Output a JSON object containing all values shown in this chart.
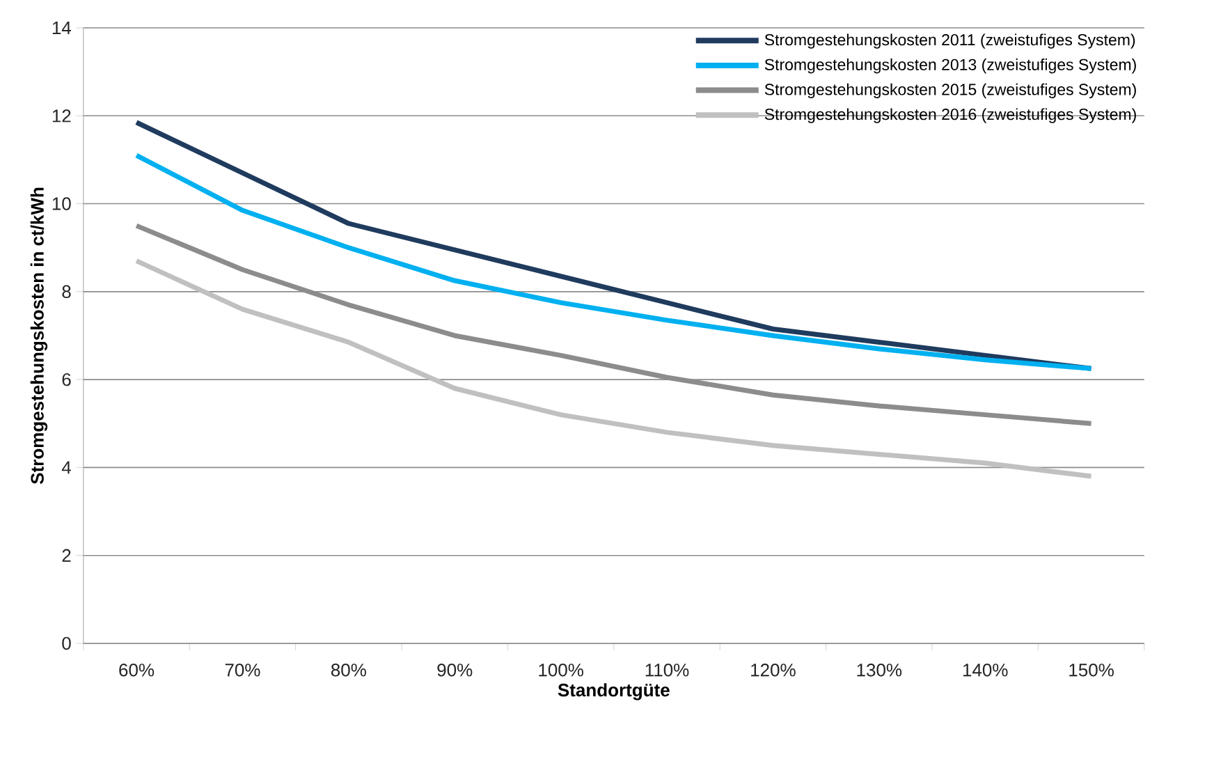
{
  "chart_data": {
    "type": "line",
    "xlabel": "Standortgüte",
    "ylabel": "Stromgestehungskosten in ct/kWh",
    "categories": [
      "60%",
      "70%",
      "80%",
      "90%",
      "100%",
      "110%",
      "120%",
      "130%",
      "140%",
      "150%"
    ],
    "series": [
      {
        "name": "Stromgestehungskosten 2011 (zweistufiges System)",
        "color": "#1f3b5e",
        "values": [
          11.85,
          10.7,
          9.55,
          8.95,
          8.35,
          7.75,
          7.15,
          6.85,
          6.55,
          6.25
        ]
      },
      {
        "name": "Stromgestehungskosten 2013 (zweistufiges System)",
        "color": "#00b0f0",
        "values": [
          11.1,
          9.85,
          9.0,
          8.25,
          7.75,
          7.35,
          7.0,
          6.7,
          6.45,
          6.25
        ]
      },
      {
        "name": "Stromgestehungskosten 2015 (zweistufiges System)",
        "color": "#8c8c8c",
        "values": [
          9.5,
          8.5,
          7.7,
          7.0,
          6.55,
          6.05,
          5.65,
          5.4,
          5.2,
          5.0
        ]
      },
      {
        "name": "Stromgestehungskosten 2016 (zweistufiges System)",
        "color": "#c0c0c0",
        "values": [
          8.7,
          7.6,
          6.85,
          5.8,
          5.2,
          4.8,
          4.5,
          4.3,
          4.1,
          3.8
        ]
      }
    ],
    "ylim": [
      0,
      14
    ],
    "yticks": [
      0,
      2,
      4,
      6,
      8,
      10,
      12,
      14
    ],
    "grid": "y",
    "legend": "top right",
    "marker": "none",
    "line_style": "solid"
  }
}
